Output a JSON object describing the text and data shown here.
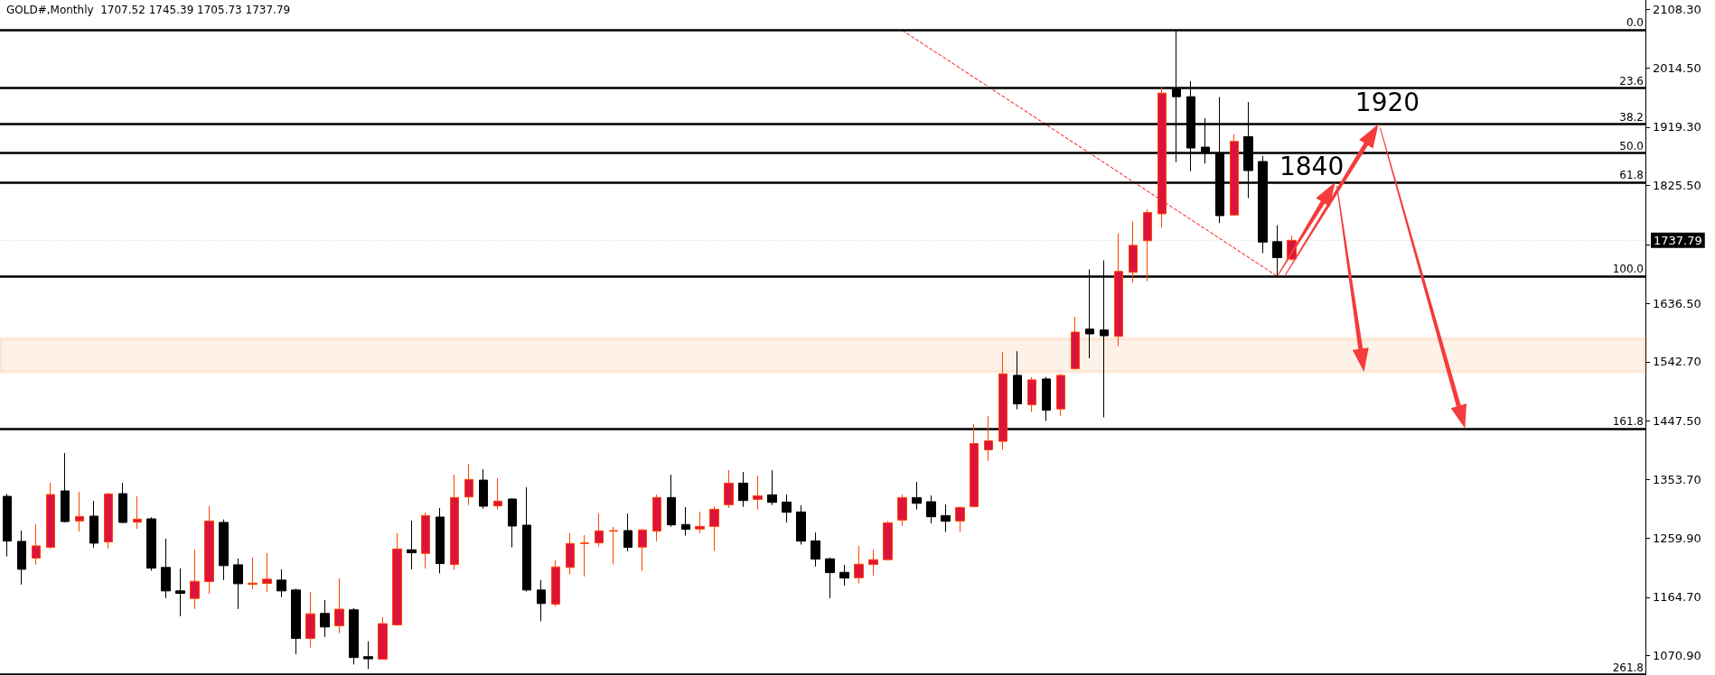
{
  "chart_data": {
    "type": "candlestick",
    "title": "GOLD#,Monthly  1707.52 1745.39 1705.73 1737.79",
    "categories": [
      null,
      null,
      null,
      null,
      null,
      null,
      null,
      null,
      null,
      null,
      null,
      null,
      null,
      null,
      null,
      null,
      null,
      null,
      null,
      null,
      null,
      null,
      null,
      null,
      null,
      null,
      null,
      null,
      null,
      null,
      null,
      null,
      null,
      null,
      null,
      null,
      null,
      null,
      null,
      null,
      null,
      null,
      null,
      null,
      null,
      null,
      null,
      null,
      null,
      null,
      null,
      null,
      null,
      null,
      null,
      null,
      null,
      null,
      null,
      null,
      null,
      null,
      null,
      null,
      null,
      null,
      null,
      null,
      null,
      null,
      null,
      null,
      null,
      null,
      null,
      null,
      null,
      null,
      null,
      null,
      null,
      null,
      null,
      null,
      null,
      null,
      null,
      null,
      null,
      null,
      null,
      null,
      null,
      null,
      null,
      null,
      null,
      null,
      null,
      null,
      null,
      null,
      null,
      null,
      null,
      null,
      null,
      null,
      null,
      null,
      null,
      null,
      null,
      null
    ],
    "ohlc": [
      [
        1326.8,
        1330.6,
        1230.4,
        1255.0
      ],
      [
        1254.5,
        1271.8,
        1185.1,
        1209.7
      ],
      [
        1227.5,
        1282.0,
        1216.9,
        1247.3
      ],
      [
        1244.9,
        1348.5,
        1242.9,
        1329.7
      ],
      [
        1335.5,
        1396.2,
        1284.9,
        1286.3
      ],
      [
        1287.3,
        1334.0,
        1270.4,
        1294.5
      ],
      [
        1295.0,
        1319.6,
        1244.4,
        1251.6
      ],
      [
        1253.5,
        1332.6,
        1242.9,
        1330.6
      ],
      [
        1331.1,
        1348.5,
        1283.4,
        1284.9
      ],
      [
        1285.3,
        1326.8,
        1274.7,
        1290.2
      ],
      [
        1290.6,
        1293.1,
        1207.3,
        1211.6
      ],
      [
        1212.6,
        1258.8,
        1163.4,
        1175.0
      ],
      [
        1175.0,
        1211.1,
        1134.5,
        1171.1
      ],
      [
        1162.9,
        1241.5,
        1146.0,
        1190.4
      ],
      [
        1189.9,
        1310.9,
        1170.6,
        1287.3
      ],
      [
        1284.9,
        1289.7,
        1192.3,
        1215.5
      ],
      [
        1216.9,
        1227.0,
        1146.0,
        1186.5
      ],
      [
        1185.6,
        1228.5,
        1177.9,
        1187.5
      ],
      [
        1187.0,
        1235.7,
        1173.5,
        1193.8
      ],
      [
        1192.3,
        1209.7,
        1164.9,
        1175.0
      ],
      [
        1176.4,
        1178.8,
        1073.7,
        1098.8
      ],
      [
        1098.8,
        1173.5,
        1083.9,
        1138.3
      ],
      [
        1138.8,
        1160.5,
        1101.2,
        1117.1
      ],
      [
        1119.1,
        1195.2,
        1107.0,
        1145.6
      ],
      [
        1144.6,
        1147.5,
        1056.9,
        1068.0
      ],
      [
        1069.4,
        1094.0,
        1049.6,
        1066.0
      ],
      [
        1065.5,
        1133.0,
        1065.5,
        1122.4
      ],
      [
        1120.5,
        1267.5,
        1119.1,
        1242.4
      ],
      [
        1241.0,
        1287.8,
        1209.7,
        1236.2
      ],
      [
        1235.2,
        1300.8,
        1211.1,
        1296.0
      ],
      [
        1293.5,
        1308.0,
        1202.9,
        1218.8
      ],
      [
        1217.4,
        1361.5,
        1208.7,
        1324.9
      ],
      [
        1325.8,
        1378.9,
        1312.8,
        1353.8
      ],
      [
        1352.8,
        1370.2,
        1307.0,
        1310.9
      ],
      [
        1311.4,
        1355.7,
        1305.6,
        1319.1
      ],
      [
        1322.5,
        1323.9,
        1244.9,
        1279.1
      ],
      [
        1280.5,
        1341.3,
        1174.0,
        1176.4
      ],
      [
        1176.4,
        1192.3,
        1126.3,
        1154.7
      ],
      [
        1153.8,
        1224.1,
        1149.9,
        1213.5
      ],
      [
        1212.6,
        1267.5,
        1201.5,
        1251.1
      ],
      [
        1251.1,
        1264.6,
        1198.1,
        1252.1
      ],
      [
        1252.1,
        1299.3,
        1246.3,
        1271.4
      ],
      [
        1270.9,
        1277.6,
        1217.4,
        1271.8
      ],
      [
        1271.8,
        1299.3,
        1238.6,
        1244.9
      ],
      [
        1245.3,
        1274.7,
        1207.3,
        1272.8
      ],
      [
        1270.9,
        1329.7,
        1254.5,
        1324.9
      ],
      [
        1324.9,
        1361.5,
        1278.1,
        1281.0
      ],
      [
        1281.5,
        1309.4,
        1263.7,
        1273.8
      ],
      [
        1274.3,
        1302.2,
        1268.0,
        1278.6
      ],
      [
        1278.5,
        1310.4,
        1239.0,
        1306.0
      ],
      [
        1313.3,
        1368.7,
        1308.4,
        1348.0
      ],
      [
        1348.0,
        1365.8,
        1309.9,
        1320.0
      ],
      [
        1321.9,
        1360.0,
        1305.5,
        1327.7
      ],
      [
        1329.2,
        1368.7,
        1312.8,
        1317.1
      ],
      [
        1317.6,
        1329.6,
        1284.8,
        1301.2
      ],
      [
        1301.7,
        1312.3,
        1249.2,
        1254.9
      ],
      [
        1255.4,
        1268.9,
        1214.0,
        1226.0
      ],
      [
        1226.5,
        1228.4,
        1163.4,
        1204.3
      ],
      [
        1204.8,
        1216.9,
        1183.6,
        1195.7
      ],
      [
        1196.1,
        1247.2,
        1187.0,
        1217.8
      ],
      [
        1217.3,
        1241.4,
        1199.5,
        1225.1
      ],
      [
        1225.1,
        1287.2,
        1225.1,
        1284.3
      ],
      [
        1288.7,
        1329.6,
        1279.5,
        1324.8
      ],
      [
        1324.8,
        1349.9,
        1305.5,
        1315.6
      ],
      [
        1318.1,
        1328.2,
        1283.4,
        1294.0
      ],
      [
        1295.9,
        1313.7,
        1269.4,
        1286.8
      ],
      [
        1287.2,
        1310.4,
        1269.4,
        1308.9
      ],
      [
        1310.4,
        1442.4,
        1308.9,
        1411.6
      ],
      [
        1401.5,
        1455.4,
        1383.6,
        1415.9
      ],
      [
        1415.0,
        1558.1,
        1401.5,
        1523.4
      ],
      [
        1521.0,
        1559.6,
        1466.5,
        1475.2
      ],
      [
        1473.8,
        1518.0,
        1462.2,
        1513.8
      ],
      [
        1515.2,
        1518.6,
        1447.7,
        1465.1
      ],
      [
        1467.0,
        1523.4,
        1455.9,
        1521.0
      ],
      [
        1531.6,
        1615.0,
        1530.6,
        1590.4
      ],
      [
        1595.2,
        1691.1,
        1548.5,
        1587.5
      ],
      [
        1593.8,
        1705.6,
        1453.5,
        1584.6
      ],
      [
        1583.7,
        1749.0,
        1567.8,
        1687.8
      ],
      [
        1686.3,
        1767.8,
        1670.4,
        1729.7
      ],
      [
        1737.0,
        1787.5,
        1671.9,
        1782.3
      ],
      [
        1780.3,
        1984.7,
        1758.2,
        1974.1
      ],
      [
        1980.8,
        2075.3,
        1863.2,
        1968.3
      ],
      [
        1968.3,
        1993.4,
        1848.8,
        1885.9
      ],
      [
        1887.3,
        1934.1,
        1860.8,
        1877.7
      ],
      [
        1877.7,
        1967.8,
        1765.4,
        1777.4
      ],
      [
        1778.4,
        1908.0,
        1777.4,
        1896.5
      ],
      [
        1904.2,
        1959.6,
        1805.4,
        1849.7
      ],
      [
        1864.2,
        1872.9,
        1717.2,
        1735.0
      ],
      [
        1735.5,
        1762.0,
        1680.1,
        1710.0
      ],
      [
        1707.52,
        1745.39,
        1705.73,
        1737.79
      ],
      null,
      null,
      null,
      null,
      null,
      null,
      null,
      null,
      null,
      null,
      null,
      null,
      null,
      null,
      null,
      null,
      null,
      null,
      null,
      null,
      null,
      null,
      null,
      null
    ],
    "series": [
      {
        "type": "line",
        "color": "#ff0000",
        "line_style": "dashed",
        "values": [
          null,
          null,
          null,
          null,
          null,
          null,
          null,
          null,
          null,
          null,
          null,
          null,
          null,
          null,
          null,
          null,
          null,
          null,
          null,
          null,
          null,
          null,
          null,
          null,
          null,
          null,
          null,
          null,
          null,
          null,
          null,
          null,
          null,
          null,
          null,
          null,
          null,
          null,
          null,
          null,
          null,
          null,
          null,
          null,
          null,
          null,
          null,
          null,
          null,
          null,
          null,
          null,
          null,
          null,
          null,
          null,
          null,
          null,
          null,
          null,
          null,
          null,
          2075,
          null,
          null,
          null,
          null,
          null,
          null,
          null,
          null,
          null,
          null,
          null,
          null,
          null,
          null,
          null,
          null,
          null,
          null,
          null,
          null,
          null,
          null,
          null,
          null,
          null,
          1680,
          null,
          null,
          null,
          null,
          null,
          null,
          null,
          null,
          null,
          null,
          null,
          null,
          null,
          null,
          null,
          null,
          null,
          null,
          null,
          null,
          null,
          null,
          null,
          null,
          null
        ]
      }
    ],
    "ylim": [
      1040,
      2123.5
    ],
    "yticks": [
      {
        "value": 2108.3,
        "label": "2108.30"
      },
      {
        "value": 2014.5,
        "label": "2014.50"
      },
      {
        "value": 1919.3,
        "label": "1919.30"
      },
      {
        "value": 1825.5,
        "label": "1825.50"
      },
      {
        "value": 1731.0,
        "label": null
      },
      {
        "value": 1636.5,
        "label": "1636.50"
      },
      {
        "value": 1542.7,
        "label": "1542.70"
      },
      {
        "value": 1447.5,
        "label": "1447.50"
      },
      {
        "value": 1353.7,
        "label": "1353.70"
      },
      {
        "value": 1259.9,
        "label": "1259.90"
      },
      {
        "value": 1164.7,
        "label": "1164.70"
      },
      {
        "value": 1070.9,
        "label": "1070.90"
      }
    ],
    "tick_labels": "y",
    "ref_lines": [
      {
        "axis": "y",
        "value": 2075.3,
        "color": "#000000"
      },
      {
        "axis": "y",
        "value": 1982.0,
        "color": "#000000"
      },
      {
        "axis": "y",
        "value": 1924.3,
        "color": "#000000"
      },
      {
        "axis": "y",
        "value": 1877.7,
        "color": "#000000"
      },
      {
        "axis": "y",
        "value": 1831.0,
        "color": "#000000"
      },
      {
        "axis": "y",
        "value": 1680.1,
        "color": "#000000"
      },
      {
        "axis": "y",
        "value": 1435.7,
        "color": "#000000"
      },
      {
        "axis": "y",
        "value": 1040.4,
        "color": "#000000"
      },
      {
        "axis": "y",
        "value": 1737.79,
        "label": "1737.79",
        "color": "#e4e4e4",
        "line_style": "dotted"
      }
    ],
    "bands": [
      {
        "axis": "y",
        "from": 1526.3,
        "to": 1579.8,
        "color": "#f58b3c"
      }
    ],
    "annotations": [
      "1840",
      "1920",
      {
        "text": "0.0",
        "y": 2075.3
      },
      {
        "text": "23.6",
        "y": 1982.0
      },
      {
        "text": "38.2",
        "y": 1924.3
      },
      {
        "text": "50.0",
        "y": 1877.7
      },
      {
        "text": "61.8",
        "y": 1831.0
      },
      {
        "text": "100.0",
        "y": 1680.1
      },
      {
        "text": "161.8",
        "y": 1435.7
      },
      {
        "text": "261.8",
        "y": 1040.4
      }
    ]
  }
}
